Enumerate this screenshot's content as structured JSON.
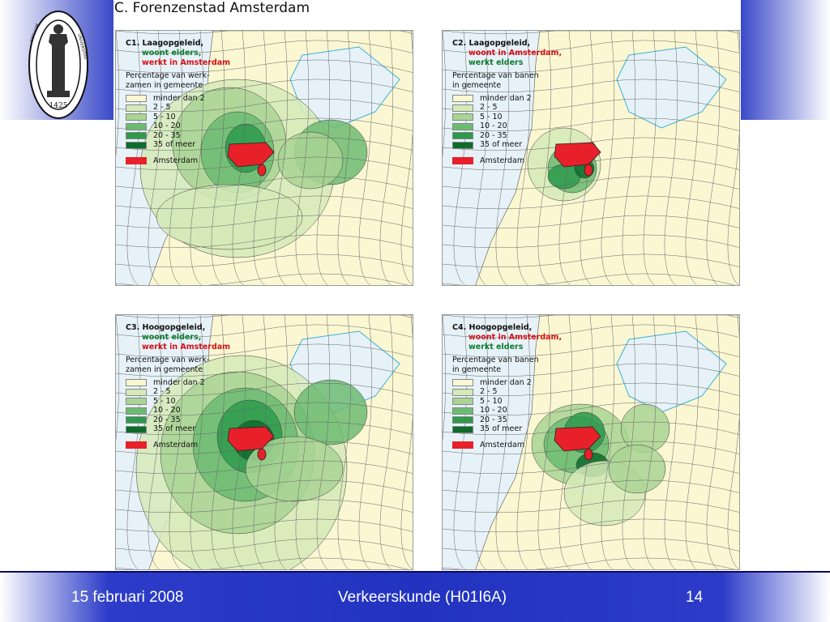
{
  "slide": {
    "title": "C. Forenzenstad Amsterdam",
    "footer_date": "15 februari 2008",
    "footer_course": "Verkeerskunde (H01I6A)",
    "footer_page": "14",
    "logo_year": "1425",
    "logo_text": "UNIVERSITAS CATHOLICA LOVANIENSIS SIGILLUM"
  },
  "legend_classes": [
    "minder dan 2",
    "2 - 5",
    "5 - 10",
    "10 - 20",
    "20 - 35",
    "35 of meer"
  ],
  "legend_colors": [
    "#fbf7d2",
    "#d5eab8",
    "#a9d494",
    "#6cbb72",
    "#2d9a4c",
    "#0d6b2c"
  ],
  "amsterdam_label": "Amsterdam",
  "amsterdam_color": "#e8202a",
  "panels": [
    {
      "title": "C1. Laagopgeleid,",
      "line2": "woont elders,",
      "line2_color": "green",
      "line3": "werkt in Amsterdam",
      "line3_color": "red",
      "sub1": "Percentage van werk-",
      "sub2": "zamen in gemeente"
    },
    {
      "title": "C2. Laagopgeleid,",
      "line2": "woont in Amsterdam,",
      "line2_color": "red",
      "line3": "werkt elders",
      "line3_color": "green",
      "sub1": "Percentage van banen",
      "sub2": "in gemeente"
    },
    {
      "title": "C3. Hoogopgeleid,",
      "line2": "woont elders,",
      "line2_color": "green",
      "line3": "werkt in Amsterdam",
      "line3_color": "red",
      "sub1": "Percentage van werk-",
      "sub2": "zamen in gemeente"
    },
    {
      "title": "C4. Hoogopgeleid,",
      "line2": "woont in Amsterdam,",
      "line2_color": "red",
      "line3": "werkt elders",
      "line3_color": "green",
      "sub1": "Percentage van banen",
      "sub2": "in gemeente"
    }
  ]
}
